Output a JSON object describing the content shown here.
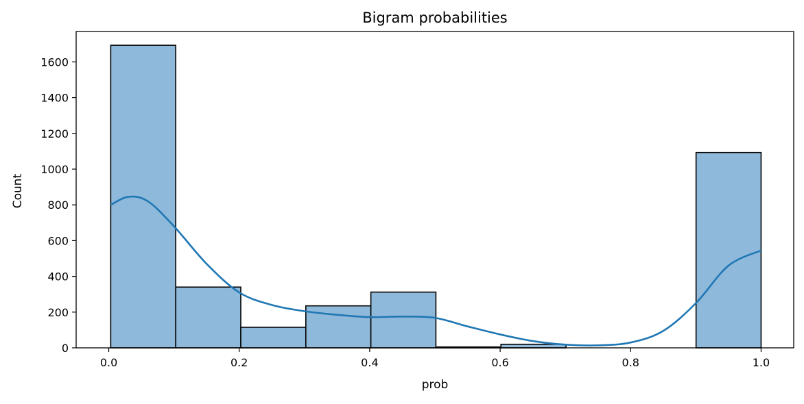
{
  "chart_data": {
    "type": "bar",
    "title": "Bigram probabilities",
    "xlabel": "prob",
    "ylabel": "Count",
    "xlim": [
      -0.05,
      1.05
    ],
    "ylim": [
      0,
      1770
    ],
    "xticks": [
      0.0,
      0.2,
      0.4,
      0.6,
      0.8,
      1.0
    ],
    "xtick_labels": [
      "0.0",
      "0.2",
      "0.4",
      "0.6",
      "0.8",
      "1.0"
    ],
    "yticks": [
      0,
      200,
      400,
      600,
      800,
      1000,
      1200,
      1400,
      1600
    ],
    "ytick_labels": [
      "0",
      "200",
      "400",
      "600",
      "800",
      "1000",
      "1200",
      "1400",
      "1600"
    ],
    "bins": [
      {
        "x0": 0.003,
        "x1": 0.1027,
        "count": 1693
      },
      {
        "x0": 0.1027,
        "x1": 0.2024,
        "count": 340
      },
      {
        "x0": 0.2024,
        "x1": 0.3021,
        "count": 115
      },
      {
        "x0": 0.3021,
        "x1": 0.4018,
        "count": 235
      },
      {
        "x0": 0.4018,
        "x1": 0.5015,
        "count": 312
      },
      {
        "x0": 0.5015,
        "x1": 0.6012,
        "count": 5
      },
      {
        "x0": 0.6012,
        "x1": 0.7009,
        "count": 20
      },
      {
        "x0": 0.7009,
        "x1": 0.8006,
        "count": 0
      },
      {
        "x0": 0.8006,
        "x1": 0.9003,
        "count": 0
      },
      {
        "x0": 0.9003,
        "x1": 1.0,
        "count": 1093
      }
    ],
    "kde": {
      "x": [
        0.003,
        0.03,
        0.06,
        0.1,
        0.15,
        0.2,
        0.25,
        0.3,
        0.35,
        0.4,
        0.45,
        0.5,
        0.55,
        0.6,
        0.65,
        0.7,
        0.75,
        0.8,
        0.85,
        0.9,
        0.95,
        1.0
      ],
      "y": [
        800,
        845,
        820,
        680,
        470,
        310,
        240,
        205,
        185,
        172,
        175,
        168,
        120,
        75,
        38,
        18,
        14,
        30,
        95,
        250,
        460,
        545
      ]
    },
    "colors": {
      "bar_fill": "#8fb9da",
      "bar_edge": "#000000",
      "kde_line": "#1f77b4"
    },
    "grid": false,
    "legend": "none"
  }
}
